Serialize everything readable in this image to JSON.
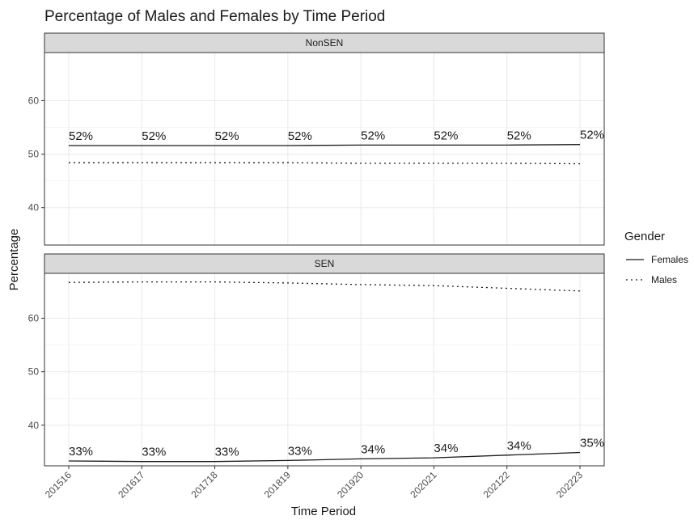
{
  "chart_data": {
    "type": "line",
    "title": "Percentage of Males and Females by Time Period",
    "xlabel": "Time Period",
    "ylabel": "Percentage",
    "categories": [
      "201516",
      "201617",
      "201718",
      "201819",
      "201920",
      "202021",
      "202122",
      "202223"
    ],
    "legend": {
      "title": "Gender",
      "position": "right",
      "entries": [
        {
          "name": "Females",
          "line_style": "solid"
        },
        {
          "name": "Males",
          "line_style": "dotted"
        }
      ]
    },
    "grid": true,
    "line_color": "#1a1a1a",
    "panels": [
      {
        "strip": "NonSEN",
        "ylim": [
          33,
          69
        ],
        "yticks": [
          40,
          50,
          60
        ],
        "series": [
          {
            "name": "Females",
            "values": [
              51.6,
              51.6,
              51.6,
              51.6,
              51.7,
              51.7,
              51.7,
              51.8
            ]
          },
          {
            "name": "Males",
            "values": [
              48.4,
              48.4,
              48.4,
              48.4,
              48.3,
              48.3,
              48.3,
              48.2
            ]
          }
        ],
        "labels": [
          "52%",
          "52%",
          "52%",
          "52%",
          "52%",
          "52%",
          "52%",
          "52%"
        ]
      },
      {
        "strip": "SEN",
        "ylim": [
          32.4,
          68.4
        ],
        "yticks": [
          40,
          50,
          60
        ],
        "series": [
          {
            "name": "Females",
            "values": [
              33.3,
              33.2,
              33.2,
              33.4,
              33.7,
              33.9,
              34.4,
              34.9
            ]
          },
          {
            "name": "Males",
            "values": [
              66.7,
              66.8,
              66.8,
              66.6,
              66.3,
              66.1,
              65.6,
              65.1
            ]
          }
        ],
        "labels": [
          "33%",
          "33%",
          "33%",
          "33%",
          "34%",
          "34%",
          "34%",
          "35%"
        ]
      }
    ]
  }
}
